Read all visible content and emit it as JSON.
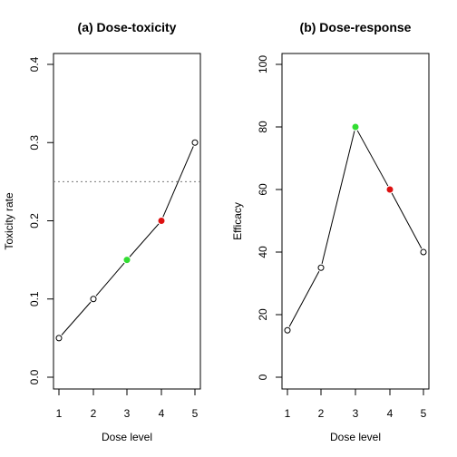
{
  "chart_data": [
    {
      "type": "line",
      "title": "(a) Dose-toxicity",
      "xlabel": "Dose level",
      "ylabel": "Toxicity rate",
      "x": [
        1,
        2,
        3,
        4,
        5
      ],
      "xticks": [
        "1",
        "2",
        "3",
        "4",
        "5"
      ],
      "ylim": [
        0,
        0.4
      ],
      "yticks": [
        "0.0",
        "0.1",
        "0.2",
        "0.3",
        "0.4"
      ],
      "values": [
        0.05,
        0.1,
        0.15,
        0.2,
        0.3
      ],
      "reference_line": 0.25,
      "highlight": [
        {
          "x": 3,
          "color": "#33dd33"
        },
        {
          "x": 4,
          "color": "#dd1111"
        }
      ]
    },
    {
      "type": "line",
      "title": "(b) Dose-response",
      "xlabel": "Dose level",
      "ylabel": "Efficacy",
      "x": [
        1,
        2,
        3,
        4,
        5
      ],
      "xticks": [
        "1",
        "2",
        "3",
        "4",
        "5"
      ],
      "ylim": [
        0,
        100
      ],
      "yticks": [
        "0",
        "20",
        "40",
        "60",
        "80",
        "100"
      ],
      "values": [
        15,
        35,
        80,
        60,
        40
      ],
      "highlight": [
        {
          "x": 3,
          "color": "#33dd33"
        },
        {
          "x": 4,
          "color": "#dd1111"
        }
      ]
    }
  ]
}
